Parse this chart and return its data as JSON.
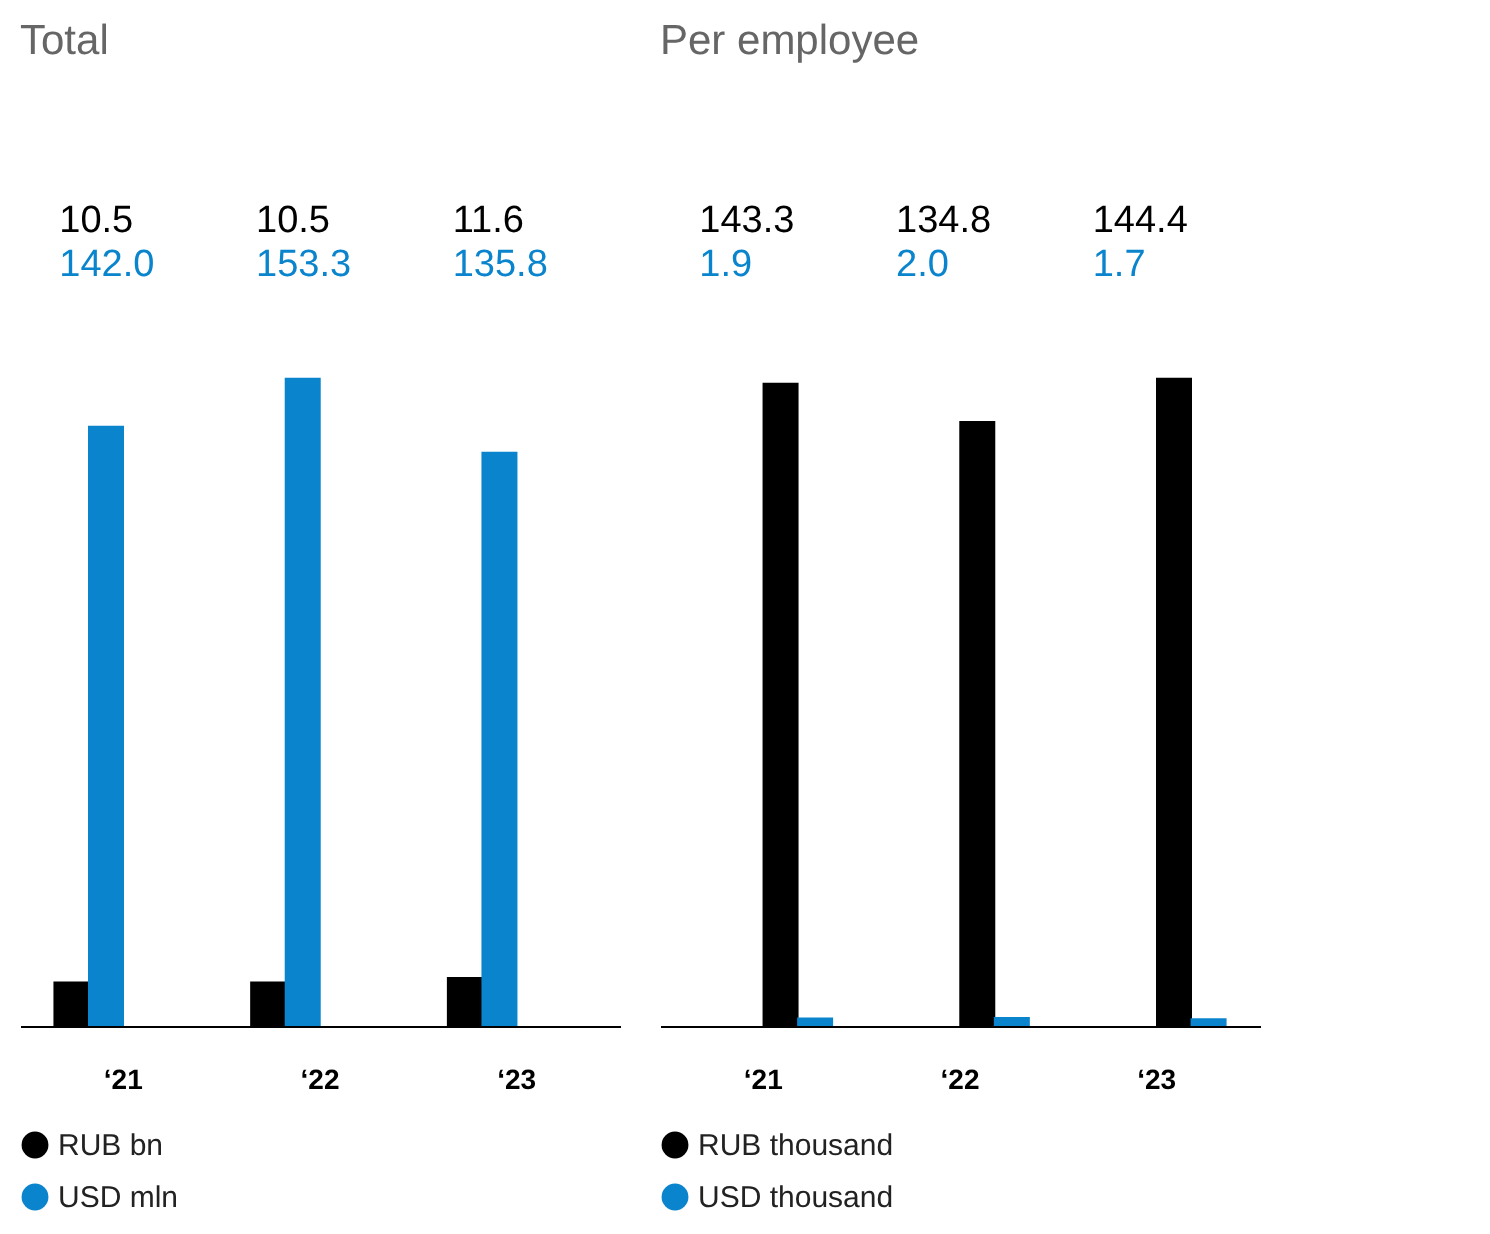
{
  "chart_data": [
    {
      "type": "bar",
      "title": "Total",
      "categories": [
        "‘21",
        "‘22",
        "‘23"
      ],
      "series": [
        {
          "name": "RUB bn",
          "color": "#000000",
          "values": [
            10.5,
            10.5,
            11.6
          ],
          "value_labels": [
            "10.5",
            "10.5",
            "11.6"
          ]
        },
        {
          "name": "USD mln",
          "color": "#0a84cc",
          "values": [
            142.0,
            153.3,
            135.8
          ],
          "value_labels": [
            "142.0",
            "153.3",
            "135.8"
          ]
        }
      ],
      "legend": "bottom",
      "grid": false
    },
    {
      "type": "bar",
      "title": "Per employee",
      "categories": [
        "‘21",
        "‘22",
        "‘23"
      ],
      "series": [
        {
          "name": "RUB thousand",
          "color": "#000000",
          "values": [
            143.3,
            134.8,
            144.4
          ],
          "value_labels": [
            "143.3",
            "134.8",
            "144.4"
          ]
        },
        {
          "name": "USD thousand",
          "color": "#0a84cc",
          "values": [
            1.9,
            2.0,
            1.7
          ],
          "value_labels": [
            "1.9",
            "2.0",
            "1.7"
          ]
        }
      ],
      "legend": "bottom",
      "grid": false
    }
  ]
}
